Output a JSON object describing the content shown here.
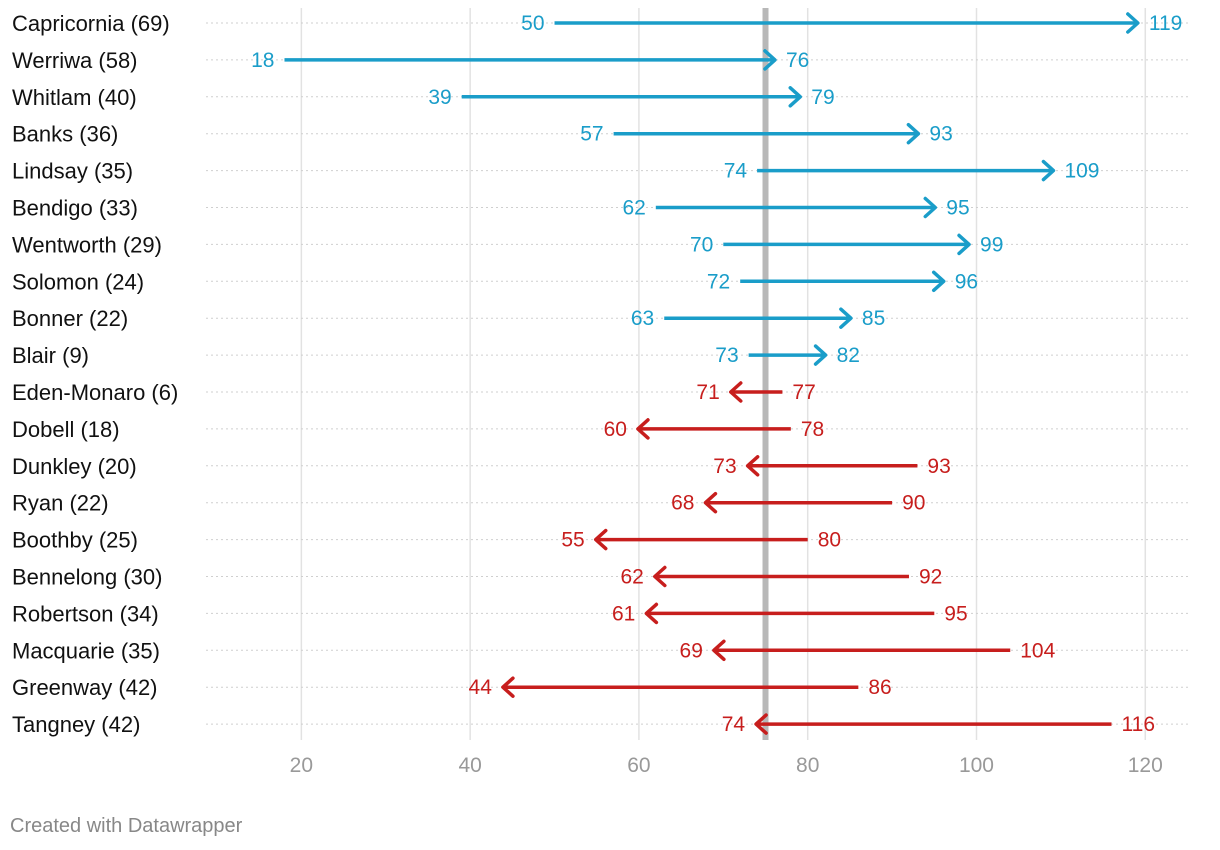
{
  "chart_data": {
    "type": "arrow",
    "x_ticks": [
      20,
      40,
      60,
      80,
      100,
      120
    ],
    "xlim": [
      8.7,
      125.3
    ],
    "reference_line": 75,
    "colors": {
      "up": "#1a9dc9",
      "down": "#c71e1d",
      "grid": "#e2e2e2",
      "reference": "#b8b8b8",
      "label": "#111111",
      "tick": "#999999"
    },
    "rows": [
      {
        "label": "Capricornia (69)",
        "start": 50,
        "end": 119
      },
      {
        "label": "Werriwa (58)",
        "start": 18,
        "end": 76
      },
      {
        "label": "Whitlam (40)",
        "start": 39,
        "end": 79
      },
      {
        "label": "Banks (36)",
        "start": 57,
        "end": 93
      },
      {
        "label": "Lindsay (35)",
        "start": 74,
        "end": 109
      },
      {
        "label": "Bendigo (33)",
        "start": 62,
        "end": 95
      },
      {
        "label": "Wentworth (29)",
        "start": 70,
        "end": 99
      },
      {
        "label": "Solomon (24)",
        "start": 72,
        "end": 96
      },
      {
        "label": "Bonner (22)",
        "start": 63,
        "end": 85
      },
      {
        "label": "Blair (9)",
        "start": 73,
        "end": 82
      },
      {
        "label": "Eden-Monaro (6)",
        "start": 77,
        "end": 71
      },
      {
        "label": "Dobell (18)",
        "start": 78,
        "end": 60
      },
      {
        "label": "Dunkley (20)",
        "start": 93,
        "end": 73
      },
      {
        "label": "Ryan (22)",
        "start": 90,
        "end": 68
      },
      {
        "label": "Boothby (25)",
        "start": 80,
        "end": 55
      },
      {
        "label": "Bennelong (30)",
        "start": 92,
        "end": 62
      },
      {
        "label": "Robertson (34)",
        "start": 95,
        "end": 61
      },
      {
        "label": "Macquarie (35)",
        "start": 104,
        "end": 69
      },
      {
        "label": "Greenway (42)",
        "start": 86,
        "end": 44
      },
      {
        "label": "Tangney (42)",
        "start": 116,
        "end": 74
      }
    ]
  },
  "footer": {
    "credit": "Created with Datawrapper"
  }
}
